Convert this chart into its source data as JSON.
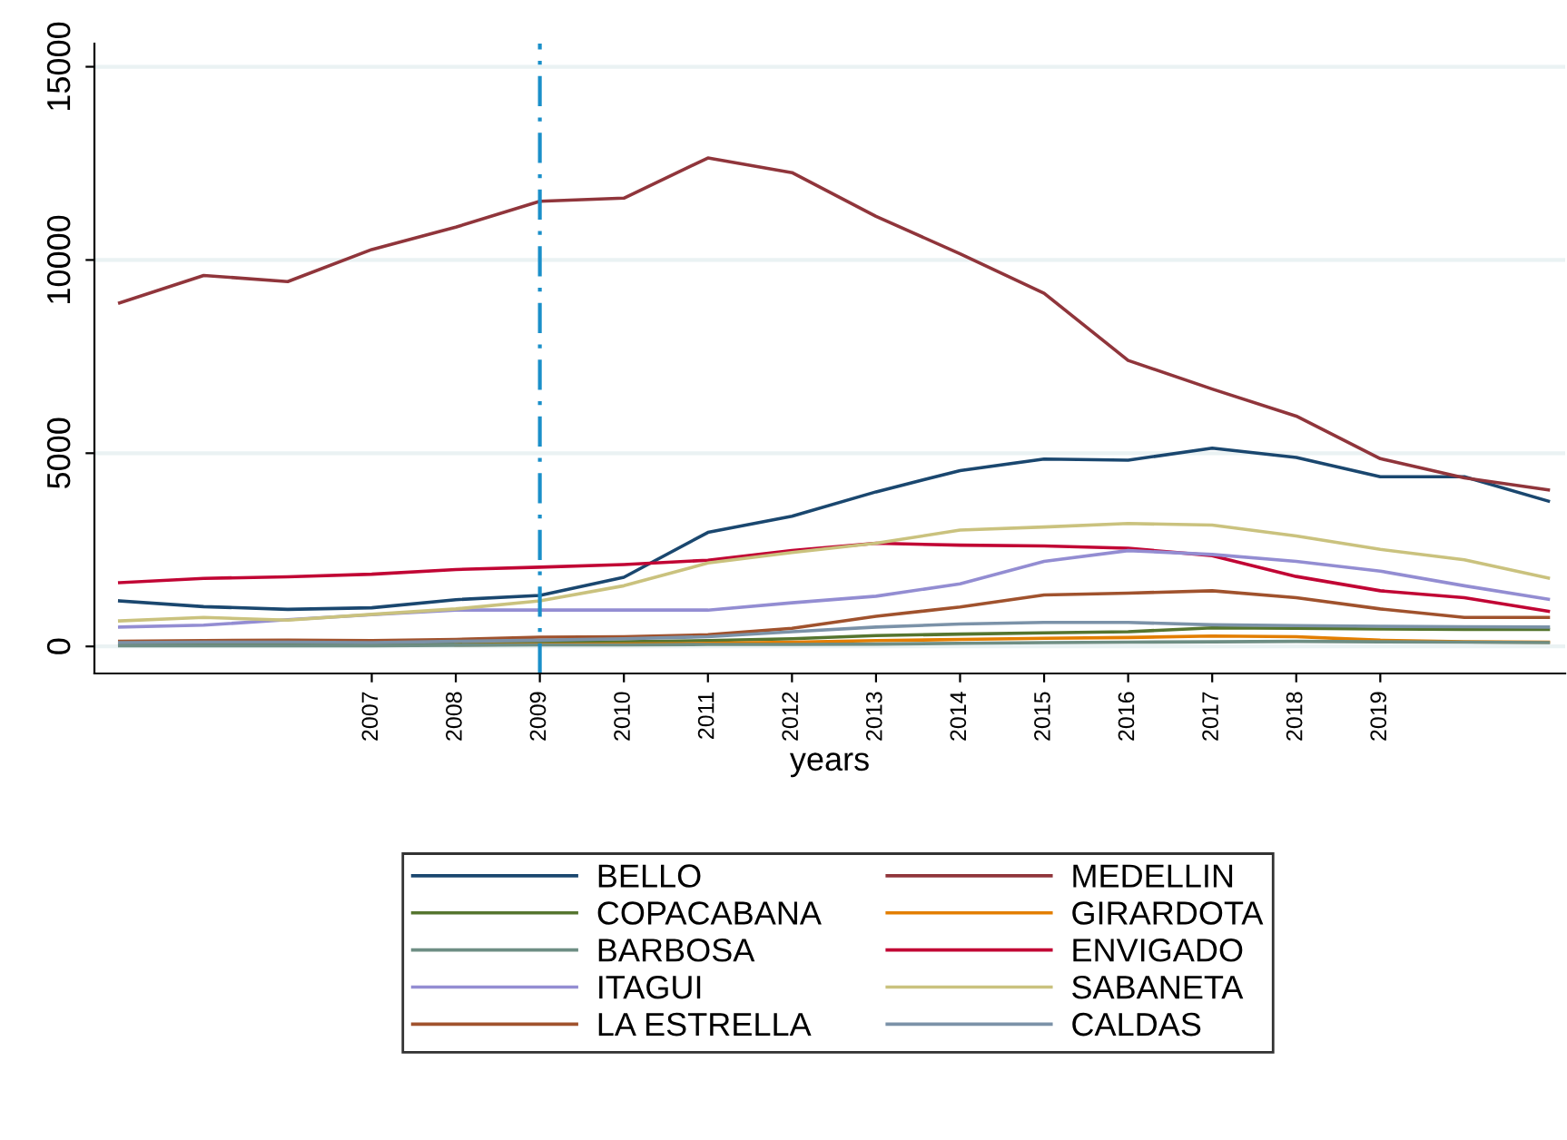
{
  "chart_data": {
    "type": "line",
    "xlabel": "years",
    "x": [
      2004,
      2005,
      2006,
      2007,
      2008,
      2009,
      2010,
      2011,
      2012,
      2013,
      2014,
      2015,
      2016,
      2017,
      2018,
      2019,
      2020,
      2021
    ],
    "xlim": [
      2003.7,
      2021.2
    ],
    "xticks": [
      2007,
      2008,
      2009,
      2010,
      2011,
      2012,
      2013,
      2014,
      2015,
      2016,
      2017,
      2018,
      2019
    ],
    "ylim": [
      -700,
      15600
    ],
    "yticks": [
      0,
      5000,
      10000,
      15000
    ],
    "grid": "y",
    "legend": "bottom",
    "marker": "none",
    "line_style": "solid",
    "ref_lines": [
      {
        "axis": "x",
        "value": 2009,
        "color": "#1a8fc9",
        "line_style": "dashdot"
      }
    ],
    "series": [
      {
        "name": "BELLO",
        "color": "#1a476f",
        "values": [
          1180,
          1030,
          960,
          1000,
          1210,
          1320,
          1790,
          2950,
          3370,
          4000,
          4550,
          4850,
          4820,
          5130,
          4890,
          4390,
          4390,
          3760
        ]
      },
      {
        "name": "MEDELLIN",
        "color": "#90353b",
        "values": [
          8890,
          9600,
          9440,
          10270,
          10850,
          11520,
          11600,
          12640,
          12260,
          11130,
          10160,
          9140,
          7400,
          6660,
          5960,
          4860,
          4360,
          4050
        ]
      },
      {
        "name": "COPACABANA",
        "color": "#55752f",
        "values": [
          60,
          60,
          60,
          60,
          70,
          100,
          120,
          150,
          200,
          280,
          320,
          350,
          380,
          480,
          470,
          450,
          440,
          440
        ]
      },
      {
        "name": "GIRARDOTA",
        "color": "#e37e00",
        "values": [
          null,
          null,
          null,
          null,
          40,
          50,
          60,
          80,
          110,
          150,
          180,
          210,
          230,
          270,
          250,
          160,
          120,
          110
        ]
      },
      {
        "name": "BARBOSA",
        "color": "#6e8e84",
        "values": [
          20,
          20,
          20,
          20,
          30,
          40,
          40,
          50,
          50,
          60,
          80,
          100,
          110,
          120,
          130,
          120,
          110,
          100
        ]
      },
      {
        "name": "ENVIGADO",
        "color": "#c10534",
        "values": [
          1650,
          1760,
          1800,
          1870,
          1990,
          2050,
          2120,
          2230,
          2480,
          2670,
          2620,
          2600,
          2540,
          2350,
          1810,
          1440,
          1260,
          910
        ]
      },
      {
        "name": "ITAGUI",
        "color": "#938dd2",
        "values": [
          500,
          550,
          690,
          820,
          940,
          940,
          940,
          940,
          1130,
          1300,
          1620,
          2200,
          2480,
          2380,
          2200,
          1950,
          1570,
          1220
        ]
      },
      {
        "name": "SABANETA",
        "color": "#cac27e",
        "values": [
          660,
          750,
          680,
          830,
          970,
          1180,
          1570,
          2160,
          2430,
          2670,
          3010,
          3090,
          3180,
          3140,
          2860,
          2510,
          2240,
          1770
        ]
      },
      {
        "name": "LA ESTRELLA",
        "color": "#a0522d",
        "values": [
          130,
          150,
          160,
          150,
          180,
          240,
          250,
          300,
          470,
          780,
          1020,
          1330,
          1380,
          1440,
          1260,
          970,
          750,
          750
        ]
      },
      {
        "name": "CALDAS",
        "color": "#7b92a8",
        "values": [
          100,
          110,
          110,
          100,
          130,
          160,
          200,
          250,
          380,
          500,
          580,
          620,
          620,
          560,
          540,
          520,
          510,
          500
        ]
      }
    ]
  }
}
